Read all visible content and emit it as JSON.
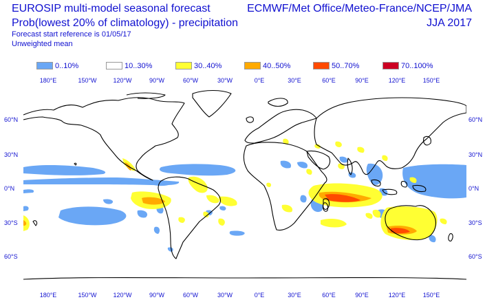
{
  "header": {
    "title_line1": "EUROSIP multi-model seasonal forecast",
    "title_line2": "Prob(lowest 20% of climatology) - precipitation",
    "forecast_ref": "Forecast start reference is 01/05/17",
    "mean_type": "Unweighted mean",
    "centres": "ECMWF/Met Office/Meteo-France/NCEP/JMA",
    "season": "JJA 2017"
  },
  "legend": [
    {
      "label": "0..10%",
      "color": "#6aa7f5"
    },
    {
      "label": "10..30%",
      "color": "#ffffff"
    },
    {
      "label": "30..40%",
      "color": "#ffff33"
    },
    {
      "label": "40..50%",
      "color": "#ffaa00"
    },
    {
      "label": "50..70%",
      "color": "#ff4a00"
    },
    {
      "label": "70..100%",
      "color": "#cc0022"
    }
  ],
  "lon_labels": [
    "180°E",
    "150°W",
    "120°W",
    "90°W",
    "60°W",
    "30°W",
    "0°E",
    "30°E",
    "60°E",
    "90°E",
    "120°E",
    "150°E"
  ],
  "lat_labels_left": [
    "60°N",
    "30°N",
    "0°N",
    "30°S",
    "60°S"
  ],
  "lat_labels_right": [
    "60°N",
    "30°N",
    "0°N",
    "30°S",
    "60°S"
  ]
}
